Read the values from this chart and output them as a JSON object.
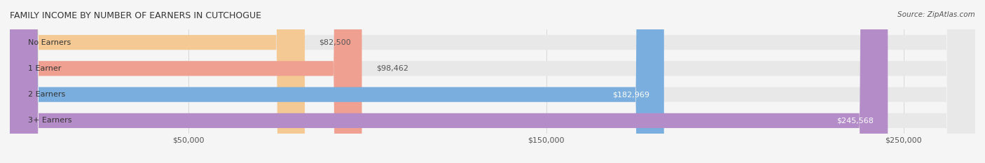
{
  "title": "FAMILY INCOME BY NUMBER OF EARNERS IN CUTCHOGUE",
  "source": "Source: ZipAtlas.com",
  "categories": [
    "No Earners",
    "1 Earner",
    "2 Earners",
    "3+ Earners"
  ],
  "values": [
    82500,
    98462,
    182969,
    245568
  ],
  "bar_colors": [
    "#f5c993",
    "#f0a090",
    "#7aaede",
    "#b48dc8"
  ],
  "label_colors": [
    "#555555",
    "#555555",
    "#ffffff",
    "#ffffff"
  ],
  "bar_bg_color": "#e8e8e8",
  "background_color": "#f5f5f5",
  "xlim": [
    0,
    270000
  ],
  "xticks": [
    50000,
    150000,
    250000
  ],
  "xtick_labels": [
    "$50,000",
    "$150,000",
    "$250,000"
  ],
  "value_labels": [
    "$82,500",
    "$98,462",
    "$182,969",
    "$245,568"
  ],
  "bar_height": 0.55,
  "bar_gap": 0.15
}
